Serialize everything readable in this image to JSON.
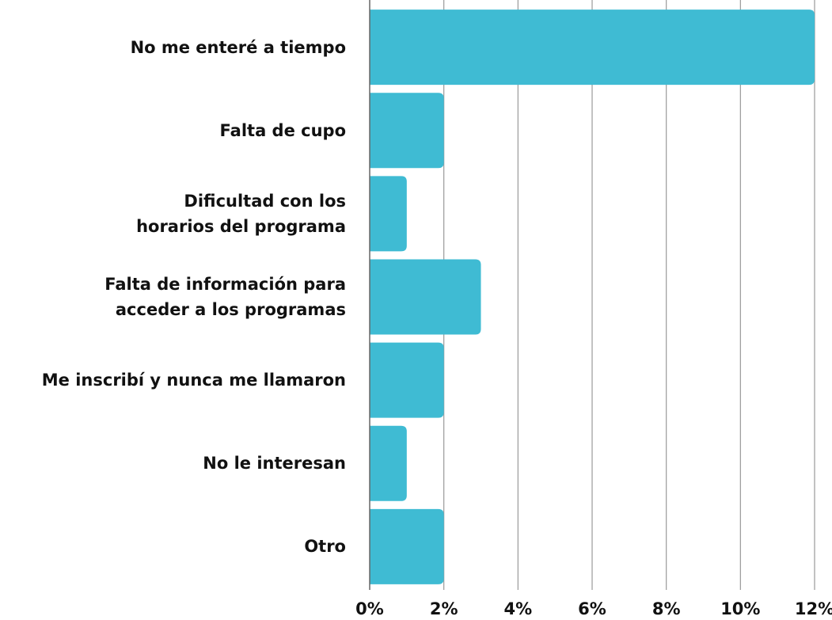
{
  "chart_data": {
    "type": "barh",
    "categories": [
      "No me enteré a tiempo",
      "Falta de cupo",
      "Dificultad con los\nhorarios del programa",
      "Falta de información para\nacceder a los programas",
      "Me inscribí y nunca me llamaron",
      "No le interesan",
      "Otro"
    ],
    "values": [
      12,
      2,
      1,
      3,
      2,
      1,
      2
    ],
    "color": "#3fbbd3",
    "xlim": [
      0,
      12
    ],
    "xticks": [
      {
        "value": 0,
        "label": "0%"
      },
      {
        "value": 2,
        "label": "2%"
      },
      {
        "value": 4,
        "label": "4%"
      },
      {
        "value": 6,
        "label": "6%"
      },
      {
        "value": 8,
        "label": "8%"
      },
      {
        "value": 10,
        "label": "10%"
      },
      {
        "value": 12,
        "label": "12%"
      }
    ],
    "grid": true
  }
}
